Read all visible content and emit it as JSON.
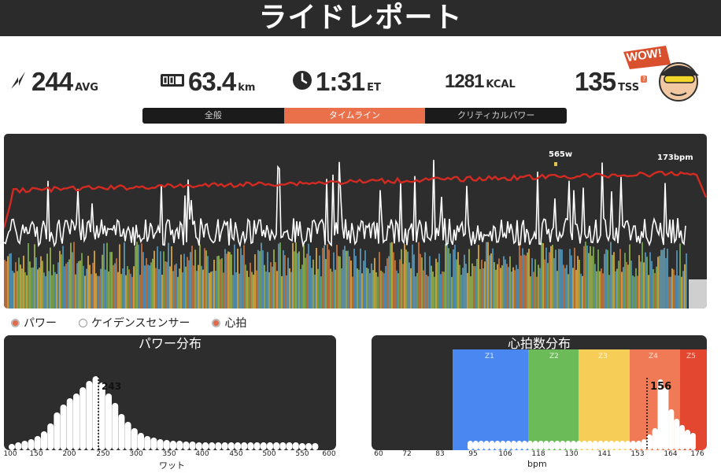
{
  "header": {
    "title": "ライドレポート"
  },
  "stats": {
    "power": {
      "value": "244",
      "unit": "AVG",
      "icon": "lightning-icon"
    },
    "distance": {
      "value": "63.4",
      "unit": "km",
      "icon": "odometer-icon"
    },
    "time": {
      "value": "1:31",
      "unit": "ET",
      "icon": "clock-icon"
    },
    "calories": {
      "value": "1281",
      "unit": "KCAL"
    },
    "tss": {
      "value": "135",
      "unit": "TSS",
      "badge": "?",
      "icon": "avatar-wow-icon",
      "wow_text": "WOW!"
    }
  },
  "tabs": [
    {
      "label": "全般",
      "active": false
    },
    {
      "label": "タイムライン",
      "active": true
    },
    {
      "label": "クリティカルパワー",
      "active": false
    }
  ],
  "timeline": {
    "peak_power_label": "565w",
    "peak_hr_label": "173bpm"
  },
  "legend": [
    {
      "label": "パワー",
      "checked": true,
      "color": "#e06a4a"
    },
    {
      "label": "ケイデンスセンサー",
      "checked": false,
      "color": "#ffffff"
    },
    {
      "label": "心拍",
      "checked": true,
      "color": "#e06a4a"
    }
  ],
  "power_distribution": {
    "title": "パワー分布",
    "xlabel": "ワット",
    "marker_value": "243",
    "ticks": [
      "100",
      "150",
      "200",
      "250",
      "300",
      "350",
      "400",
      "450",
      "500",
      "550",
      "600"
    ]
  },
  "hr_distribution": {
    "title": "心拍数分布",
    "xlabel": "bpm",
    "marker_value": "156",
    "ticks": [
      "60",
      "72",
      "83",
      "95",
      "106",
      "118",
      "130",
      "141",
      "153",
      "164",
      "176"
    ],
    "zones": [
      {
        "label": "Z1",
        "color": "#4a87f0"
      },
      {
        "label": "Z2",
        "color": "#6cbb59"
      },
      {
        "label": "Z3",
        "color": "#f6ce57"
      },
      {
        "label": "Z4",
        "color": "#ef7a55"
      },
      {
        "label": "Z5",
        "color": "#e4472f"
      }
    ]
  },
  "colors": {
    "header_bg": "#2b2b2b",
    "accent": "#ea6f4b",
    "panel_bg": "#2d2d2d",
    "hr_line": "#d32a22"
  }
}
